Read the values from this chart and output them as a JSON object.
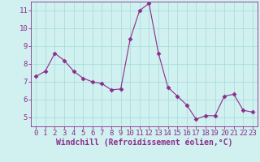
{
  "x": [
    0,
    1,
    2,
    3,
    4,
    5,
    6,
    7,
    8,
    9,
    10,
    11,
    12,
    13,
    14,
    15,
    16,
    17,
    18,
    19,
    20,
    21,
    22,
    23
  ],
  "y": [
    7.3,
    7.6,
    8.6,
    8.2,
    7.6,
    7.2,
    7.0,
    6.9,
    6.55,
    6.6,
    9.4,
    11.0,
    11.4,
    8.6,
    6.7,
    6.2,
    5.7,
    4.9,
    5.1,
    5.1,
    6.2,
    6.3,
    5.4,
    5.3
  ],
  "line_color": "#8B2D8B",
  "marker": "D",
  "marker_size": 2.5,
  "bg_color": "#d1f0f0",
  "grid_color": "#aadddd",
  "xlabel": "Windchill (Refroidissement éolien,°C)",
  "ylabel": "",
  "xlim": [
    -0.5,
    23.5
  ],
  "ylim": [
    4.5,
    11.5
  ],
  "yticks": [
    5,
    6,
    7,
    8,
    9,
    10,
    11
  ],
  "xticks": [
    0,
    1,
    2,
    3,
    4,
    5,
    6,
    7,
    8,
    9,
    10,
    11,
    12,
    13,
    14,
    15,
    16,
    17,
    18,
    19,
    20,
    21,
    22,
    23
  ],
  "tick_color": "#8B2D8B",
  "label_color": "#8B2D8B",
  "spine_color": "#8B2D8B",
  "xlabel_fontsize": 7,
  "tick_fontsize": 6.5
}
